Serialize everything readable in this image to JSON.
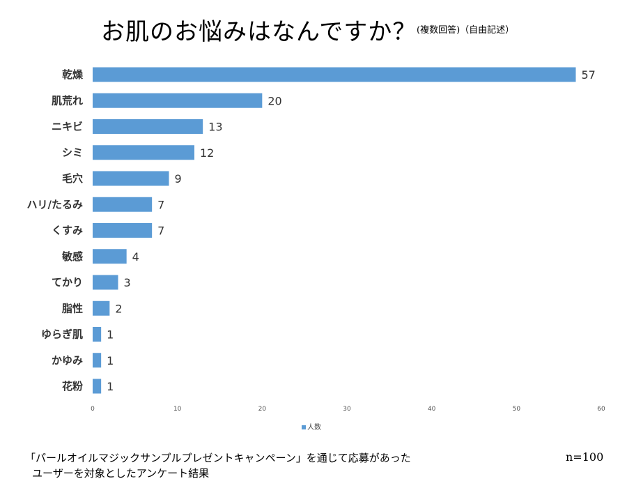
{
  "header": {
    "title": "お肌のお悩みはなんですか？",
    "subtitle": "(複数回答)（自由記述）"
  },
  "chart_data": {
    "type": "bar",
    "orientation": "horizontal",
    "categories": [
      "乾燥",
      "肌荒れ",
      "ニキビ",
      "シミ",
      "毛穴",
      "ハリ/たるみ",
      "くすみ",
      "敏感",
      "てかり",
      "脂性",
      "ゆらぎ肌",
      "かゆみ",
      "花粉"
    ],
    "series": [
      {
        "name": "人数",
        "values": [
          57,
          20,
          13,
          12,
          9,
          7,
          7,
          4,
          3,
          2,
          1,
          1,
          1
        ],
        "color": "#5b9bd5"
      }
    ],
    "xlim": [
      0,
      60
    ],
    "xticks": [
      0,
      10,
      20,
      30,
      40,
      50,
      60
    ],
    "grid": false,
    "data_labels": true,
    "legend_position": "bottom"
  },
  "legend": {
    "label": "人数"
  },
  "footnote": {
    "line1": "「パールオイルマジックサンプルプレゼントキャンペーン」を通じて応募があった",
    "line2": "ユーザーを対象としたアンケート結果"
  },
  "sample_size": "n=100"
}
